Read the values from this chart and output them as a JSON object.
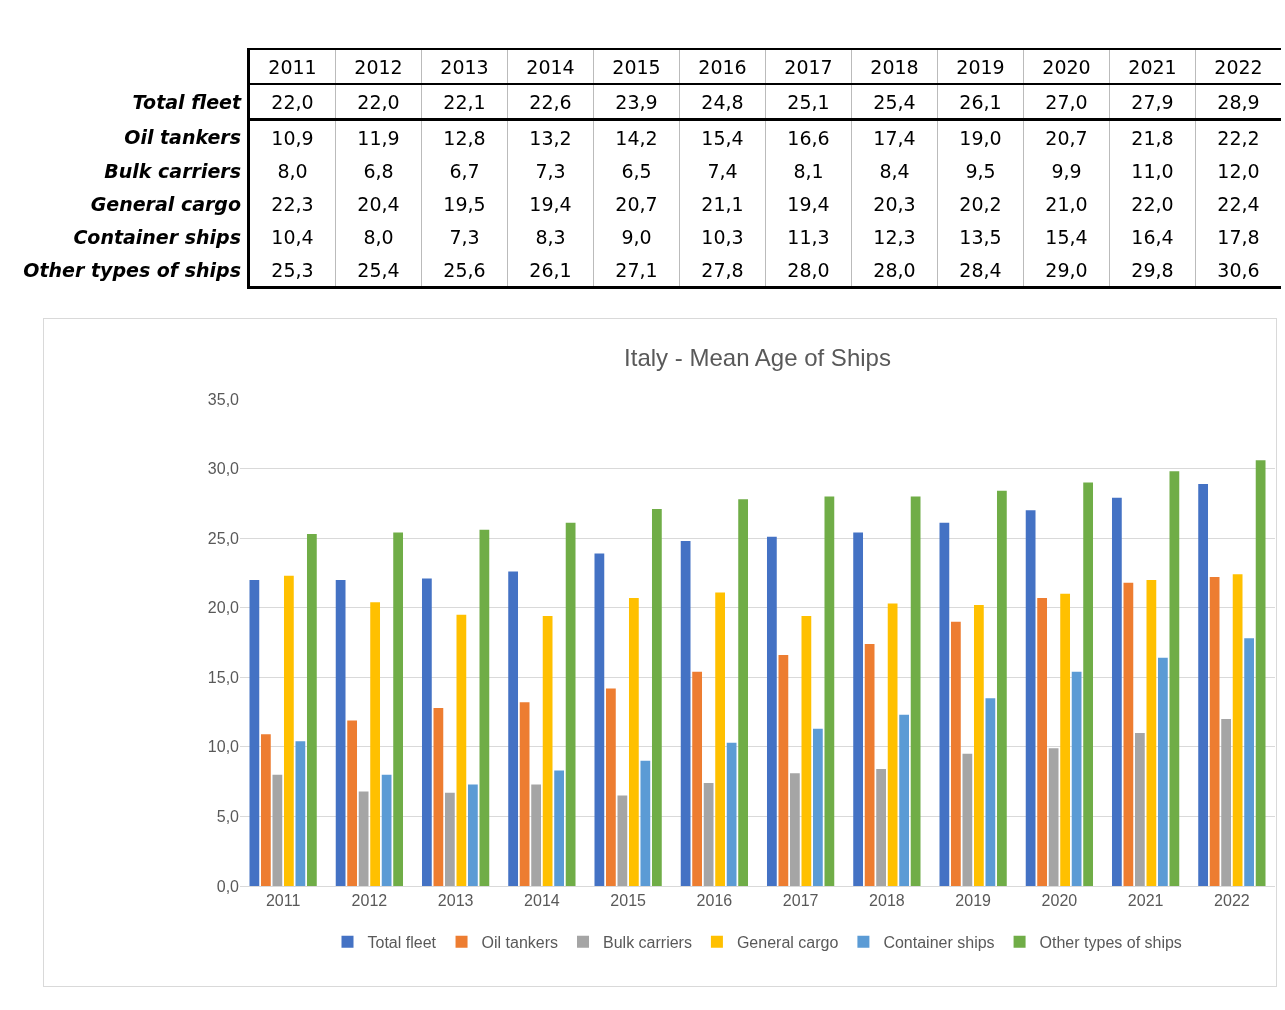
{
  "chart_data": {
    "type": "bar",
    "title": "Italy - Mean Age of Ships",
    "categories": [
      "2011",
      "2012",
      "2013",
      "2014",
      "2015",
      "2016",
      "2017",
      "2018",
      "2019",
      "2020",
      "2021",
      "2022"
    ],
    "series": [
      {
        "name": "Total fleet",
        "color": "#4472c4",
        "values": [
          22.0,
          22.0,
          22.1,
          22.6,
          23.9,
          24.8,
          25.1,
          25.4,
          26.1,
          27.0,
          27.9,
          28.9
        ],
        "value_labels": [
          "22,0",
          "22,0",
          "22,1",
          "22,6",
          "23,9",
          "24,8",
          "25,1",
          "25,4",
          "26,1",
          "27,0",
          "27,9",
          "28,9"
        ]
      },
      {
        "name": "Oil tankers",
        "color": "#ed7d31",
        "values": [
          10.9,
          11.9,
          12.8,
          13.2,
          14.2,
          15.4,
          16.6,
          17.4,
          19.0,
          20.7,
          21.8,
          22.2
        ],
        "value_labels": [
          "10,9",
          "11,9",
          "12,8",
          "13,2",
          "14,2",
          "15,4",
          "16,6",
          "17,4",
          "19,0",
          "20,7",
          "21,8",
          "22,2"
        ]
      },
      {
        "name": "Bulk carriers",
        "color": "#a5a5a5",
        "values": [
          8.0,
          6.8,
          6.7,
          7.3,
          6.5,
          7.4,
          8.1,
          8.4,
          9.5,
          9.9,
          11.0,
          12.0
        ],
        "value_labels": [
          "8,0",
          "6,8",
          "6,7",
          "7,3",
          "6,5",
          "7,4",
          "8,1",
          "8,4",
          "9,5",
          "9,9",
          "11,0",
          "12,0"
        ]
      },
      {
        "name": "General cargo",
        "color": "#ffc000",
        "values": [
          22.3,
          20.4,
          19.5,
          19.4,
          20.7,
          21.1,
          19.4,
          20.3,
          20.2,
          21.0,
          22.0,
          22.4
        ],
        "value_labels": [
          "22,3",
          "20,4",
          "19,5",
          "19,4",
          "20,7",
          "21,1",
          "19,4",
          "20,3",
          "20,2",
          "21,0",
          "22,0",
          "22,4"
        ]
      },
      {
        "name": "Container ships",
        "color": "#5b9bd5",
        "values": [
          10.4,
          8.0,
          7.3,
          8.3,
          9.0,
          10.3,
          11.3,
          12.3,
          13.5,
          15.4,
          16.4,
          17.8
        ],
        "value_labels": [
          "10,4",
          "8,0",
          "7,3",
          "8,3",
          "9,0",
          "10,3",
          "11,3",
          "12,3",
          "13,5",
          "15,4",
          "16,4",
          "17,8"
        ]
      },
      {
        "name": "Other types of ships",
        "color": "#70ad47",
        "values": [
          25.3,
          25.4,
          25.6,
          26.1,
          27.1,
          27.8,
          28.0,
          28.0,
          28.4,
          29.0,
          29.8,
          30.6
        ],
        "value_labels": [
          "25,3",
          "25,4",
          "25,6",
          "26,1",
          "27,1",
          "27,8",
          "28,0",
          "28,0",
          "28,4",
          "29,0",
          "29,8",
          "30,6"
        ]
      }
    ],
    "ylim": [
      0,
      35
    ],
    "yticks": [
      {
        "value": 0,
        "label": "0,0"
      },
      {
        "value": 5,
        "label": "5,0"
      },
      {
        "value": 10,
        "label": "10,0"
      },
      {
        "value": 15,
        "label": "15,0"
      },
      {
        "value": 20,
        "label": "20,0"
      },
      {
        "value": 25,
        "label": "25,0"
      },
      {
        "value": 30,
        "label": "30,0"
      },
      {
        "value": 35,
        "label": "35,0"
      }
    ],
    "grid": "y",
    "legend": "bottom"
  }
}
